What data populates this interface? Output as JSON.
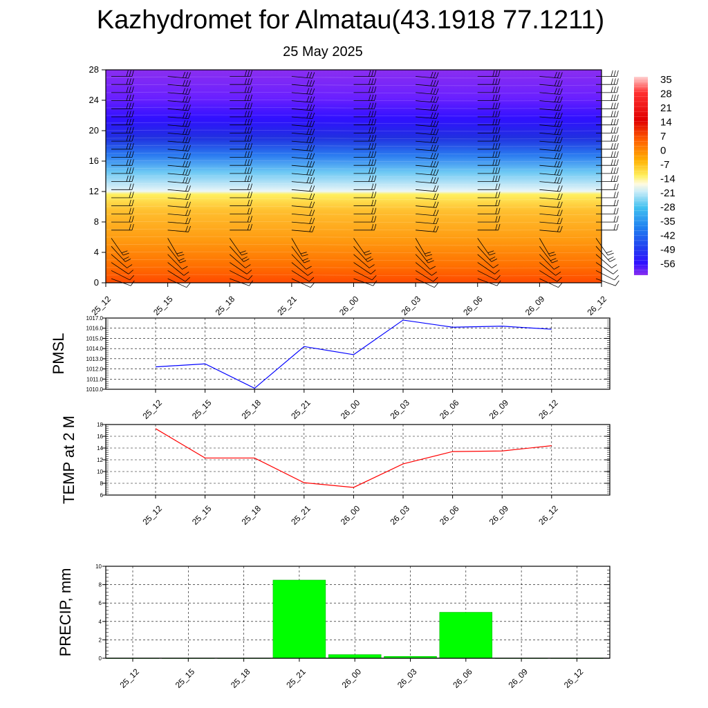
{
  "title": "Kazhydromet for Almatau(43.1918 77.1211)",
  "date": "25 May 2025",
  "colors": {
    "pmsl": "#0000ff",
    "temp": "#ff0000",
    "precip": "#00ff00",
    "frame": "#000000"
  },
  "chart_data": [
    {
      "type": "heatmap",
      "name": "Cross-section temperature with wind barbs",
      "x_ticks": [
        "25_12",
        "25_15",
        "25_18",
        "25_21",
        "26_00",
        "26_03",
        "26_06",
        "26_09",
        "26_12"
      ],
      "y_ticks": [
        "0",
        "4",
        "8",
        "12",
        "16",
        "20",
        "24",
        "28"
      ],
      "ylim": [
        0,
        28
      ],
      "colorbar": {
        "labels": [
          "35",
          "28",
          "21",
          "14",
          "7",
          "0",
          "-7",
          "-14",
          "-21",
          "-28",
          "-35",
          "-42",
          "-49",
          "-56"
        ],
        "range": [
          -60,
          38
        ]
      },
      "wind_barbs": true
    },
    {
      "type": "line",
      "ylabel": "PMSL",
      "x": [
        "25_12",
        "25_15",
        "25_18",
        "25_21",
        "26_00",
        "26_03",
        "26_06",
        "26_09",
        "26_12"
      ],
      "values": [
        1012.2,
        1012.5,
        1010.1,
        1014.2,
        1013.4,
        1016.8,
        1016.1,
        1016.2,
        1015.9
      ],
      "y_ticks": [
        "1010.0",
        "1011.0",
        "1012.0",
        "1013.0",
        "1014.0",
        "1015.0",
        "1016.0",
        "1017.0"
      ],
      "ylim": [
        1010,
        1017
      ],
      "grid": true
    },
    {
      "type": "line",
      "ylabel": "TEMP at 2 M",
      "x": [
        "25_12",
        "25_15",
        "25_18",
        "25_21",
        "26_00",
        "26_03",
        "26_06",
        "26_09",
        "26_12"
      ],
      "values": [
        17.3,
        12.3,
        12.3,
        8.1,
        7.3,
        11.3,
        13.4,
        13.5,
        14.4
      ],
      "y_ticks": [
        "6",
        "8",
        "10",
        "12",
        "14",
        "16",
        "18"
      ],
      "ylim": [
        6,
        18
      ],
      "grid": true
    },
    {
      "type": "bar",
      "ylabel": "PRECIP, mm",
      "categories": [
        "25_12",
        "25_15",
        "25_18",
        "25_21",
        "26_00",
        "26_03",
        "26_06",
        "26_09",
        "26_12"
      ],
      "values": [
        0,
        0,
        0,
        8.5,
        0.4,
        0.2,
        5.0,
        0,
        0
      ],
      "y_ticks": [
        "0",
        "2",
        "4",
        "6",
        "8",
        "10"
      ],
      "ylim": [
        0,
        10
      ],
      "grid": true
    }
  ]
}
